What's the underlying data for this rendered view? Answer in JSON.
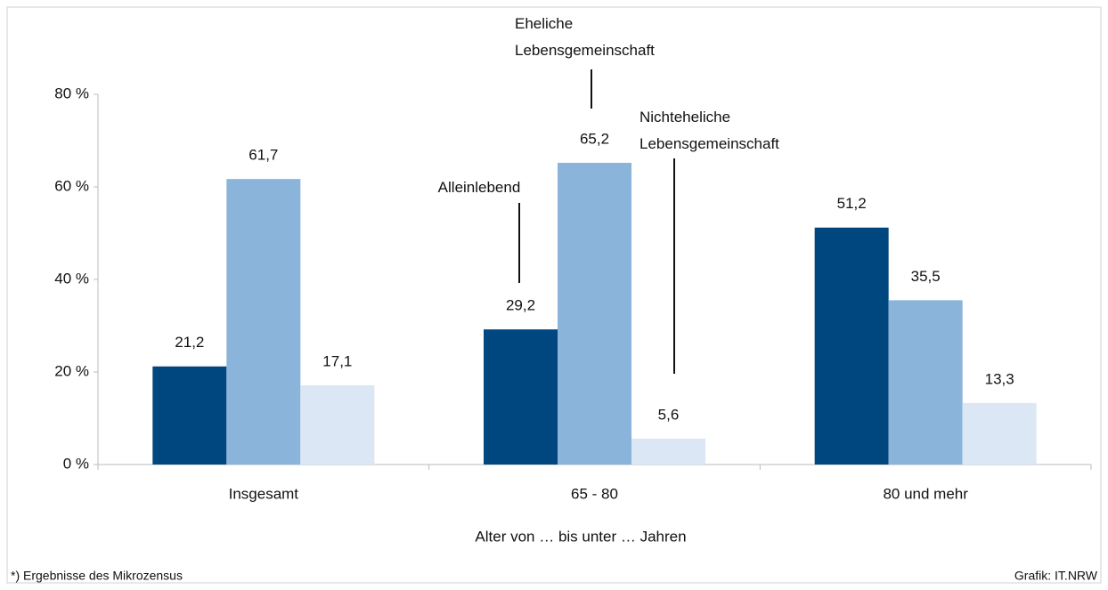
{
  "chart_data": {
    "type": "bar",
    "categories": [
      "Insgesamt",
      "65 - 80",
      "80 und mehr"
    ],
    "series": [
      {
        "name": "Alleinlebend",
        "color": "#00467f",
        "values": [
          21.2,
          29.2,
          51.2
        ],
        "value_labels": [
          "21,2",
          "29,2",
          "51,2"
        ]
      },
      {
        "name": "Eheliche Lebensgemeinschaft",
        "color": "#8ab4da",
        "values": [
          61.7,
          65.2,
          35.5
        ],
        "value_labels": [
          "61,7",
          "65,2",
          "35,5"
        ]
      },
      {
        "name": "Nichteheliche Lebensgemeinschaft",
        "color": "#dbe7f4",
        "values": [
          17.1,
          5.6,
          13.3
        ],
        "value_labels": [
          "17,1",
          "5,6",
          "13,3"
        ]
      }
    ],
    "ylim": [
      0,
      80
    ],
    "yticks": [
      {
        "value": 0,
        "label": "0 %"
      },
      {
        "value": 20,
        "label": "20 %"
      },
      {
        "value": 40,
        "label": "40 %"
      },
      {
        "value": 60,
        "label": "60 %"
      },
      {
        "value": 80,
        "label": "80 %"
      }
    ],
    "xlabel": "Alter von … bis unter … Jahren",
    "footnote": "*) Ergebnisse des Mikrozensus",
    "source": "Grafik: IT.NRW"
  }
}
